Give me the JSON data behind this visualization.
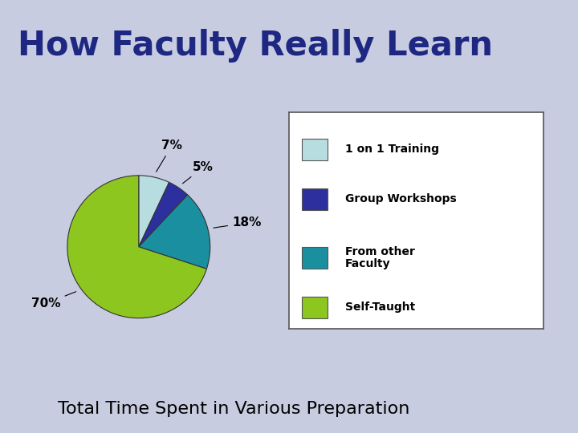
{
  "title": "How Faculty Really Learn",
  "subtitle": "Total Time Spent in Various Preparation",
  "slices": [
    7,
    5,
    18,
    70
  ],
  "labels": [
    "1 on 1 Training",
    "Group Workshops",
    "From other\nFaculty",
    "Self-Taught"
  ],
  "pct_labels": [
    "7%",
    "5%",
    "18%",
    "70%"
  ],
  "colors": [
    "#b8dde0",
    "#2e2f9f",
    "#1a8fa0",
    "#8cc61e"
  ],
  "background_color": "#c8cce0",
  "border_color": "#2e2f9f",
  "white_area": "#ffffff",
  "title_color": "#1e2882",
  "subtitle_color": "#000000",
  "startangle": 90,
  "title_fontsize": 30,
  "subtitle_fontsize": 16
}
